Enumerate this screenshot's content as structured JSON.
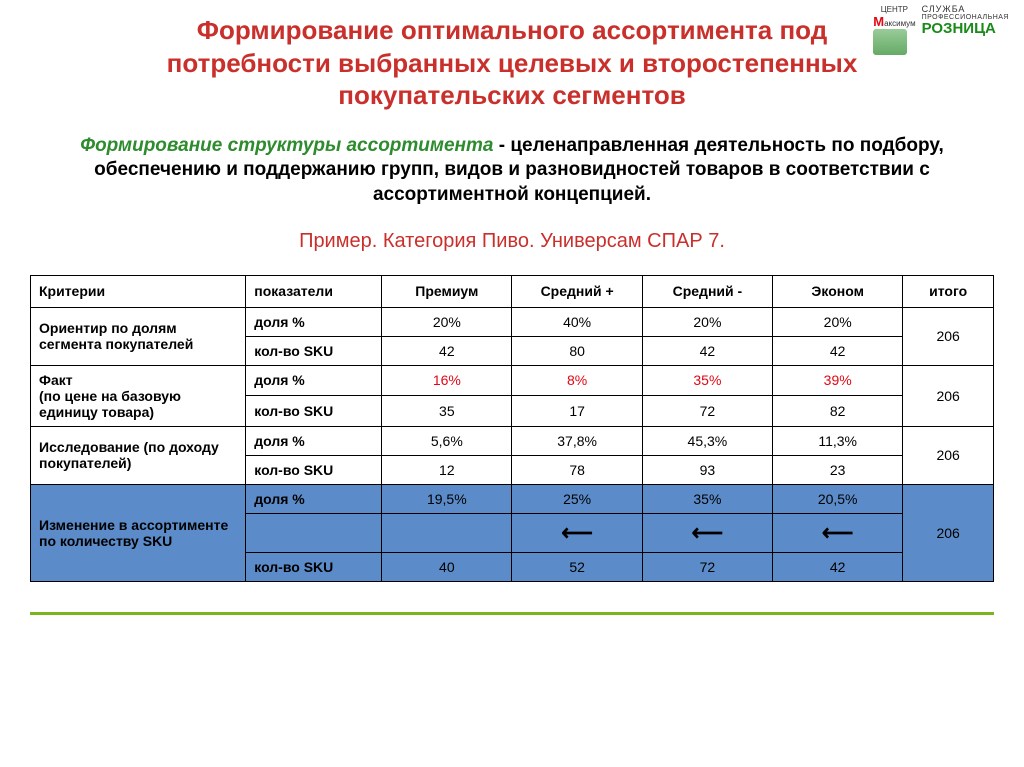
{
  "logo": {
    "brand_prefix": "М",
    "brand_rest": "аксимум",
    "brand_sub": "ЦЕНТР",
    "line1": "СЛУЖБА",
    "line2": "ПРОФЕССИОНАЛЬНАЯ",
    "line3": "РОЗНИЦА"
  },
  "title": "Формирование оптимального ассортимента под потребности выбранных целевых и второстепенных покупательских сегментов",
  "subtitle_lead": "Формирование структуры ассортимента",
  "subtitle_rest": " - целенаправленная деятельность по подбору, обеспечению и поддержанию групп, видов и разновидностей товаров в соответствии с ассортиментной концепцией.",
  "example": "Пример. Категория Пиво. Универсам СПАР 7.",
  "table": {
    "columns": [
      "Критерии",
      "показатели",
      "Премиум",
      "Средний +",
      "Средний -",
      "Эконом",
      "итого"
    ],
    "indicators": {
      "share": "доля %",
      "sku": "кол-во SKU"
    },
    "rows": [
      {
        "criterion": "Ориентир по долям сегмента покупателей",
        "share": [
          "20%",
          "40%",
          "20%",
          "20%"
        ],
        "sku": [
          "42",
          "80",
          "42",
          "42"
        ],
        "total": "206",
        "share_red": false
      },
      {
        "criterion_l1": "Факт",
        "criterion_l2": "(по цене на базовую единицу товара)",
        "share": [
          "16%",
          "8%",
          "35%",
          "39%"
        ],
        "sku": [
          "35",
          "17",
          "72",
          "82"
        ],
        "total": "206",
        "share_red": true
      },
      {
        "criterion": "Исследование (по доходу покупателей)",
        "share": [
          "5,6%",
          "37,8%",
          "45,3%",
          "11,3%"
        ],
        "sku": [
          "12",
          "78",
          "93",
          "23"
        ],
        "total": "206",
        "share_red": false
      },
      {
        "criterion": "Изменение в ассортименте по количеству SKU",
        "share": [
          "19,5%",
          "25%",
          "35%",
          "20,5%"
        ],
        "arrows": [
          "",
          "⟵",
          "⟵",
          "⟵"
        ],
        "sku": [
          "40",
          "52",
          "72",
          "42"
        ],
        "total": "206",
        "highlight": true
      }
    ],
    "styling": {
      "header_bg": "#ffffff",
      "highlight_bg": "#5b8bc9",
      "red_text": "#e30613",
      "border_color": "#000000",
      "font_size": 14
    }
  },
  "colors": {
    "title": "#c9302c",
    "subtitle_lead": "#2e8b2e",
    "footer_line": "#7ab51d",
    "background": "#ffffff"
  }
}
